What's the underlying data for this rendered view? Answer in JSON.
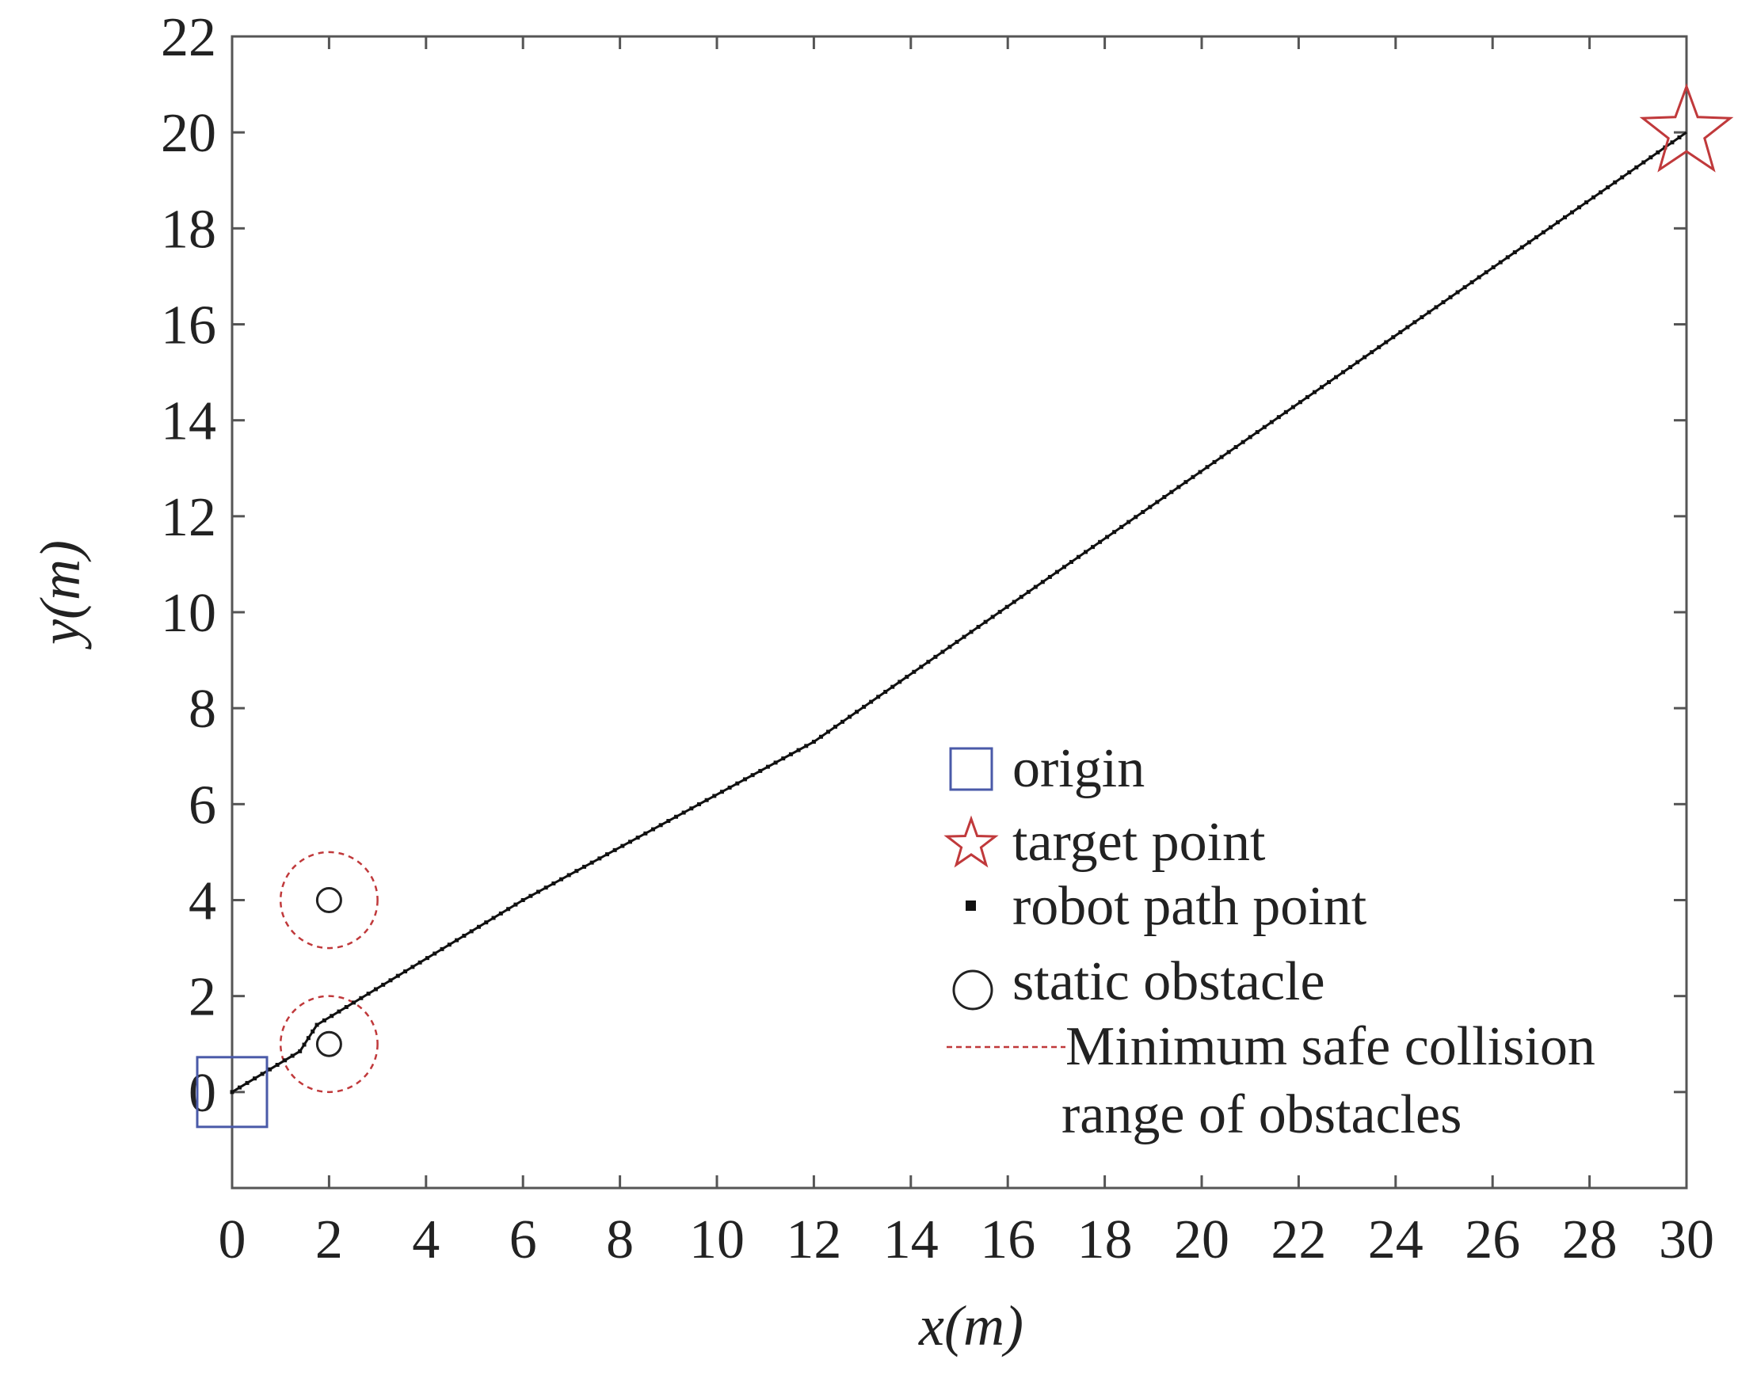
{
  "chart_data": {
    "type": "scatter",
    "xlabel": "x(m)",
    "ylabel": "y(m)",
    "xlim": [
      0,
      30
    ],
    "ylim": [
      -2,
      22
    ],
    "xticks": [
      0,
      2,
      4,
      6,
      8,
      10,
      12,
      14,
      16,
      18,
      20,
      22,
      24,
      26,
      28,
      30
    ],
    "yticks": [
      0,
      2,
      4,
      6,
      8,
      10,
      12,
      14,
      16,
      18,
      20,
      22
    ],
    "grid": false,
    "legend_position": "lower-right",
    "colors": {
      "origin": "#4a5aa8",
      "target": "#c0393b",
      "path": "#111111",
      "obstacle": "#222222",
      "safe_range": "#c0393b",
      "axes": "#555555"
    },
    "origin": {
      "x": 0,
      "y": 0
    },
    "target": {
      "x": 30,
      "y": 20
    },
    "obstacles": [
      {
        "x": 2,
        "y": 4,
        "safe_radius": 1
      },
      {
        "x": 2,
        "y": 1,
        "safe_radius": 1
      }
    ],
    "path_vertices": [
      {
        "x": 0,
        "y": 0
      },
      {
        "x": 1.4,
        "y": 0.85
      },
      {
        "x": 1.75,
        "y": 1.4
      },
      {
        "x": 6,
        "y": 4
      },
      {
        "x": 12,
        "y": 7.3
      },
      {
        "x": 30,
        "y": 20
      }
    ],
    "path_point_spacing": 0.18,
    "legend": {
      "origin": "origin",
      "target": "target point",
      "path": "robot path point",
      "obstacle": "static obstacle",
      "safe_range_line1": "Minimum safe collision",
      "safe_range_line2": "range of obstacles"
    }
  }
}
